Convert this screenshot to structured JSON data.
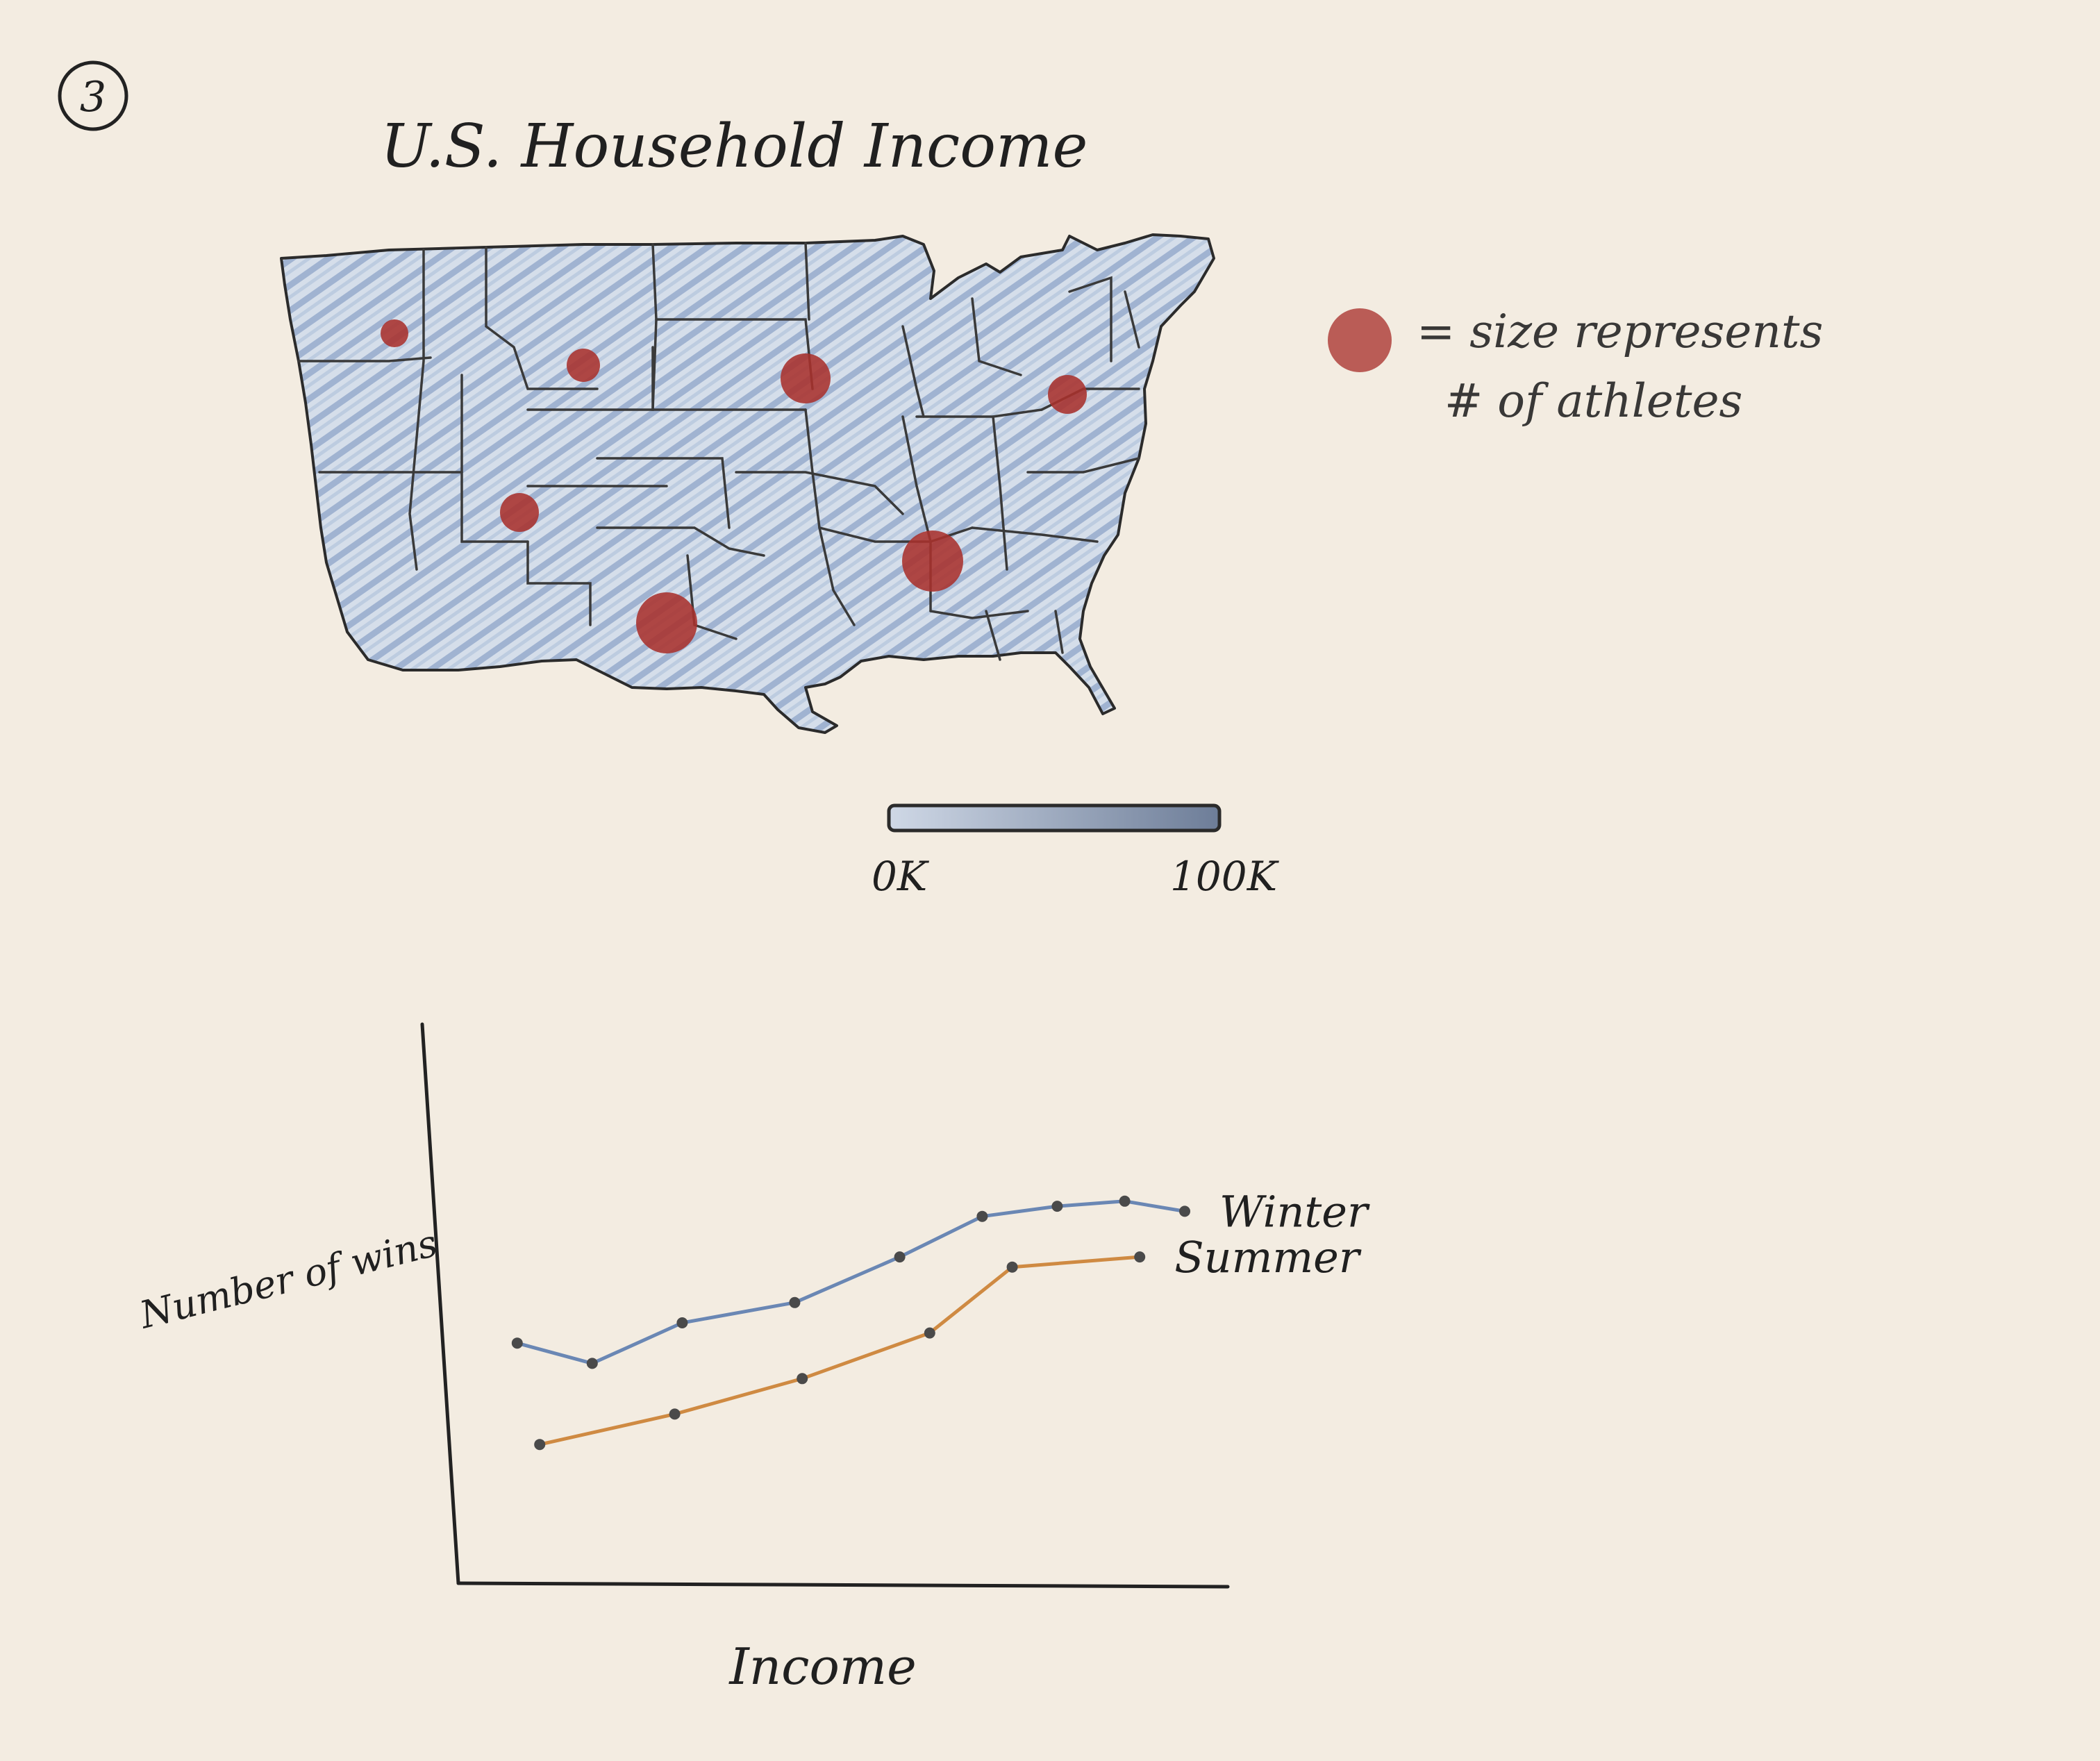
{
  "page_number": "3",
  "map": {
    "title": "U.S. Household Income",
    "legend_text_line1": "= size represents",
    "legend_text_line2": "# of athletes",
    "scale_min_label": "0K",
    "scale_max_label": "100K",
    "fill_color": "#9fb3d3",
    "bubble_color": "#a8312c",
    "bubbles": [
      {
        "id": "northwest",
        "relative_size": 1
      },
      {
        "id": "montana",
        "relative_size": 1.2
      },
      {
        "id": "minnesota",
        "relative_size": 1.7
      },
      {
        "id": "new-york",
        "relative_size": 1.4
      },
      {
        "id": "colorado",
        "relative_size": 1.4
      },
      {
        "id": "tennessee",
        "relative_size": 2.1
      },
      {
        "id": "texas",
        "relative_size": 2.1
      }
    ]
  },
  "chart_data": {
    "type": "line",
    "title": "",
    "xlabel": "Income",
    "ylabel": "Number of wins",
    "x_unit": "income (unlabeled)",
    "xlim": [
      0,
      10
    ],
    "ylim": [
      0,
      10
    ],
    "grid": false,
    "legend_position": "right",
    "series": [
      {
        "name": "Winter",
        "color": "#6a87b4",
        "x": [
          0.6,
          1.6,
          2.8,
          4.3,
          5.7,
          6.8,
          7.8,
          8.7,
          9.5
        ],
        "y": [
          4.6,
          4.2,
          5.0,
          5.4,
          6.3,
          7.1,
          7.3,
          7.4,
          7.2
        ]
      },
      {
        "name": "Summer",
        "color": "#cf8a42",
        "x": [
          0.9,
          2.7,
          4.4,
          6.1,
          7.2,
          8.9
        ],
        "y": [
          2.6,
          3.2,
          3.9,
          4.8,
          6.1,
          6.3
        ]
      }
    ]
  }
}
